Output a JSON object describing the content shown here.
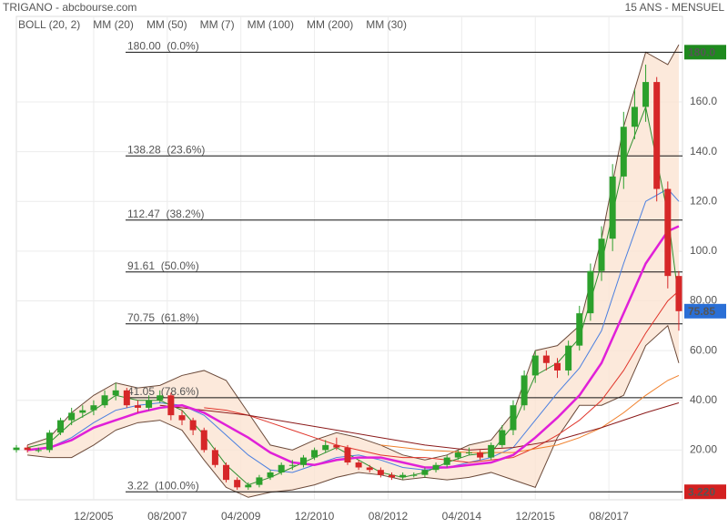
{
  "chart_data": {
    "type": "candlestick",
    "title": "TRIGANO - abcbourse.com",
    "subtitle": "15 ANS - MENSUEL",
    "up_color": "#2ca02c",
    "down_color": "#d62728",
    "grid": true,
    "xlim": [
      "2004-03",
      "2019-04"
    ],
    "xticks": [
      "12/2005",
      "08/2007",
      "04/2009",
      "12/2010",
      "08/2012",
      "04/2014",
      "12/2015",
      "08/2017"
    ],
    "ylim": [
      0,
      190
    ],
    "yticks": [
      {
        "value": 20,
        "label": "20.00"
      },
      {
        "value": 40,
        "label": "40.00"
      },
      {
        "value": 60,
        "label": "60.00"
      },
      {
        "value": 80,
        "label": "80.00"
      },
      {
        "value": 100,
        "label": "100.0"
      },
      {
        "value": 120,
        "label": "120.0"
      },
      {
        "value": 140,
        "label": "140.0"
      },
      {
        "value": 160,
        "label": "160.0"
      }
    ],
    "x": [
      "2004-03",
      "2004-06",
      "2004-09",
      "2004-12",
      "2005-03",
      "2005-06",
      "2005-09",
      "2005-12",
      "2006-03",
      "2006-06",
      "2006-09",
      "2006-12",
      "2007-03",
      "2007-06",
      "2007-09",
      "2007-12",
      "2008-03",
      "2008-06",
      "2008-09",
      "2008-12",
      "2009-03",
      "2009-06",
      "2009-09",
      "2009-12",
      "2010-03",
      "2010-06",
      "2010-09",
      "2010-12",
      "2011-03",
      "2011-06",
      "2011-09",
      "2011-12",
      "2012-03",
      "2012-06",
      "2012-09",
      "2012-12",
      "2013-03",
      "2013-06",
      "2013-09",
      "2013-12",
      "2014-03",
      "2014-06",
      "2014-09",
      "2014-12",
      "2015-03",
      "2015-06",
      "2015-09",
      "2015-12",
      "2016-03",
      "2016-06",
      "2016-09",
      "2016-12",
      "2017-03",
      "2017-06",
      "2017-09",
      "2017-12",
      "2018-03",
      "2018-06",
      "2018-09",
      "2018-12",
      "2019-03"
    ],
    "open": [
      20,
      21,
      20,
      20,
      27,
      32,
      35,
      36,
      38,
      42,
      44,
      38,
      37,
      40,
      42,
      34,
      32,
      28,
      20,
      14,
      8,
      5,
      6,
      9,
      11,
      14,
      14,
      17,
      20,
      22,
      21,
      15,
      13,
      12,
      10,
      9,
      10,
      10,
      12,
      14,
      17,
      19,
      19,
      17,
      22,
      28,
      38,
      50,
      58,
      55,
      52,
      62,
      75,
      92,
      105,
      130,
      150,
      158,
      168,
      125,
      90
    ],
    "high": [
      22,
      22,
      21,
      28,
      33,
      37,
      38,
      40,
      44,
      47,
      45,
      40,
      42,
      44,
      43,
      36,
      33,
      29,
      21,
      15,
      9,
      7,
      10,
      12,
      15,
      16,
      18,
      21,
      24,
      25,
      22,
      16,
      14,
      13,
      11,
      11,
      11,
      13,
      15,
      18,
      20,
      21,
      20,
      23,
      30,
      40,
      52,
      60,
      60,
      57,
      64,
      78,
      95,
      110,
      135,
      156,
      165,
      175,
      170,
      128,
      92
    ],
    "low": [
      19,
      19,
      19,
      19,
      26,
      30,
      33,
      34,
      37,
      40,
      37,
      35,
      36,
      39,
      32,
      30,
      26,
      19,
      13,
      7,
      4,
      4,
      5,
      8,
      10,
      12,
      13,
      16,
      19,
      20,
      14,
      12,
      11,
      9,
      8,
      8,
      9,
      9,
      11,
      13,
      16,
      18,
      16,
      16,
      21,
      26,
      36,
      47,
      52,
      49,
      50,
      60,
      72,
      88,
      100,
      125,
      145,
      152,
      120,
      85,
      68
    ],
    "close": [
      21,
      20,
      20,
      27,
      32,
      35,
      36,
      38,
      42,
      44,
      38,
      37,
      40,
      42,
      34,
      32,
      28,
      20,
      14,
      8,
      5,
      6,
      9,
      11,
      14,
      14,
      17,
      20,
      22,
      21,
      15,
      13,
      12,
      10,
      9,
      10,
      10,
      12,
      14,
      17,
      19,
      19,
      17,
      22,
      28,
      38,
      50,
      58,
      55,
      52,
      62,
      75,
      92,
      105,
      130,
      150,
      158,
      168,
      125,
      90,
      75.85
    ],
    "bollinger": {
      "name": "BOLL (20, 2)",
      "color": "#6b4a3a",
      "fill": "#fbe3d2",
      "x": [
        "2004-06",
        "2004-12",
        "2005-06",
        "2005-12",
        "2006-06",
        "2006-12",
        "2007-06",
        "2007-12",
        "2008-06",
        "2008-12",
        "2009-06",
        "2009-12",
        "2010-06",
        "2010-12",
        "2011-06",
        "2011-12",
        "2012-06",
        "2012-12",
        "2013-06",
        "2013-12",
        "2014-06",
        "2014-12",
        "2015-06",
        "2015-12",
        "2016-06",
        "2016-12",
        "2017-06",
        "2017-12",
        "2018-06",
        "2018-12",
        "2019-03"
      ],
      "upper": [
        22,
        25,
        35,
        42,
        47,
        45,
        46,
        50,
        52,
        48,
        35,
        22,
        20,
        24,
        27,
        25,
        22,
        18,
        16,
        18,
        22,
        24,
        35,
        60,
        62,
        70,
        105,
        150,
        180,
        175,
        183
      ],
      "lower": [
        18,
        17,
        17,
        22,
        28,
        31,
        32,
        28,
        16,
        5,
        1,
        3,
        4,
        6,
        9,
        11,
        10,
        8,
        9,
        8,
        9,
        11,
        8,
        5,
        25,
        38,
        38,
        42,
        62,
        70,
        55
      ]
    },
    "indicators": [
      {
        "name": "MM (20)",
        "color": "#4a7fe0",
        "width": 1,
        "x": [
          "2004-06",
          "2004-12",
          "2005-06",
          "2005-12",
          "2006-06",
          "2006-12",
          "2007-06",
          "2007-12",
          "2008-06",
          "2008-12",
          "2009-06",
          "2009-12",
          "2010-06",
          "2010-12",
          "2011-06",
          "2011-12",
          "2012-06",
          "2012-12",
          "2013-06",
          "2013-12",
          "2014-06",
          "2014-12",
          "2015-06",
          "2015-12",
          "2016-06",
          "2016-12",
          "2017-06",
          "2017-12",
          "2018-06",
          "2018-12",
          "2019-03"
        ],
        "values": [
          20,
          21,
          25,
          31,
          36,
          38,
          39,
          38,
          34,
          26,
          18,
          12,
          11,
          14,
          17,
          18,
          16,
          13,
          12,
          13,
          15,
          17,
          21,
          32,
          43,
          53,
          68,
          95,
          120,
          125,
          120
        ]
      },
      {
        "name": "MM (50)",
        "color": "#e0352b",
        "width": 1,
        "x": [
          "2008-06",
          "2008-12",
          "2009-06",
          "2009-12",
          "2010-06",
          "2010-12",
          "2011-06",
          "2011-12",
          "2012-06",
          "2012-12",
          "2013-06",
          "2013-12",
          "2014-06",
          "2014-12",
          "2015-06",
          "2015-12",
          "2016-06",
          "2016-12",
          "2017-06",
          "2017-12",
          "2018-06",
          "2018-12",
          "2019-03"
        ],
        "values": [
          37,
          36,
          34,
          31,
          28,
          25,
          22,
          20,
          18,
          17,
          17,
          16,
          15,
          16,
          17,
          21,
          26,
          32,
          40,
          52,
          67,
          80,
          84
        ]
      },
      {
        "name": "MM (7)",
        "color": "#2f8f2f",
        "width": 1,
        "x": [
          "2004-06",
          "2004-12",
          "2005-06",
          "2005-12",
          "2006-06",
          "2006-12",
          "2007-06",
          "2007-12",
          "2008-06",
          "2008-12",
          "2009-06",
          "2009-12",
          "2010-06",
          "2010-12",
          "2011-06",
          "2011-12",
          "2012-06",
          "2012-12",
          "2013-06",
          "2013-12",
          "2014-06",
          "2014-12",
          "2015-06",
          "2015-12",
          "2016-06",
          "2016-12",
          "2017-06",
          "2017-12",
          "2018-06",
          "2018-12",
          "2019-03"
        ],
        "values": [
          21,
          23,
          31,
          36,
          42,
          40,
          40,
          36,
          26,
          14,
          6,
          9,
          13,
          17,
          21,
          16,
          11,
          9,
          11,
          15,
          18,
          19,
          30,
          50,
          55,
          65,
          95,
          135,
          158,
          115,
          80
        ]
      },
      {
        "name": "MM (100)",
        "color": "#f07f2a",
        "width": 1,
        "x": [
          "2012-06",
          "2013-06",
          "2014-06",
          "2015-06",
          "2016-06",
          "2016-12",
          "2017-06",
          "2017-12",
          "2018-06",
          "2018-12",
          "2019-03"
        ],
        "values": [
          22,
          20,
          19,
          19,
          22,
          25,
          29,
          35,
          42,
          48,
          50
        ]
      },
      {
        "name": "MM (200)",
        "color": "#8b1a1a",
        "width": 1,
        "x": [
          "2007-06",
          "2008-06",
          "2009-06",
          "2010-06",
          "2011-06",
          "2012-06",
          "2013-06",
          "2014-06",
          "2015-06",
          "2016-06",
          "2017-06",
          "2018-06",
          "2019-03"
        ],
        "values": [
          38,
          36,
          34,
          31,
          28,
          25,
          22,
          20,
          21,
          24,
          29,
          35,
          39
        ]
      },
      {
        "name": "MM (30)",
        "color": "#e020d8",
        "width": 2.5,
        "x": [
          "2004-06",
          "2004-12",
          "2005-06",
          "2005-12",
          "2006-06",
          "2006-12",
          "2007-06",
          "2007-12",
          "2008-06",
          "2008-12",
          "2009-06",
          "2009-12",
          "2010-06",
          "2010-12",
          "2011-06",
          "2011-12",
          "2012-06",
          "2012-12",
          "2013-06",
          "2013-12",
          "2014-06",
          "2014-12",
          "2015-06",
          "2015-12",
          "2016-06",
          "2016-12",
          "2017-06",
          "2017-12",
          "2018-06",
          "2018-12",
          "2019-03"
        ],
        "values": [
          20,
          21,
          24,
          29,
          32,
          35,
          37,
          38,
          35,
          30,
          25,
          19,
          15,
          14,
          16,
          17,
          17,
          15,
          13,
          13,
          14,
          15,
          18,
          25,
          33,
          42,
          55,
          75,
          95,
          108,
          110
        ]
      }
    ],
    "legend_order": [
      "bollinger",
      0,
      1,
      2,
      3,
      4,
      5
    ],
    "levels": [
      {
        "value": 180,
        "label": "180.00  (0.0%)"
      },
      {
        "value": 138.28,
        "label": "138.28  (23.6%)"
      },
      {
        "value": 112.47,
        "label": "112.47  (38.2%)"
      },
      {
        "value": 91.61,
        "label": "91.61  (50.0%)"
      },
      {
        "value": 70.75,
        "label": "70.75  (61.8%)"
      },
      {
        "value": 41.05,
        "label": "41.05  (78.6%)"
      },
      {
        "value": 3.22,
        "label": "3.22  (100.0%)"
      }
    ],
    "markers": [
      {
        "value": 180,
        "label": "180.0",
        "color": "#1e8a1e"
      },
      {
        "value": 75.85,
        "label": "75.85",
        "color": "#2a6fd6"
      },
      {
        "value": 3.22,
        "label": "3.220",
        "color": "#d32020"
      }
    ]
  }
}
